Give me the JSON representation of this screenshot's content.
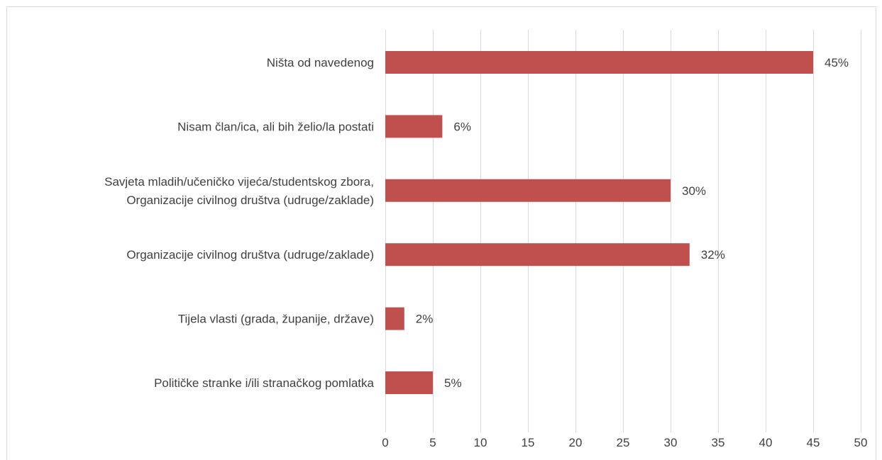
{
  "chart_data": {
    "type": "bar",
    "orientation": "horizontal",
    "title": "",
    "xlabel": "",
    "ylabel": "",
    "categories": [
      [
        "Ništa od navedenog"
      ],
      [
        "Nisam član/ica, ali bih želio/la postati"
      ],
      [
        "Savjeta mladih/učeničko vijeća/studentskog zbora,",
        "Organizacije civilnog društva (udruge/zaklade)"
      ],
      [
        "Organizacije civilnog društva (udruge/zaklade)"
      ],
      [
        "Tijela vlasti (grada, županije, države)"
      ],
      [
        "Političke stranke i/ili stranačkog pomlatka"
      ]
    ],
    "values": [
      45,
      6,
      30,
      32,
      2,
      5
    ],
    "data_labels": [
      "45%",
      "6%",
      "30%",
      "32%",
      "2%",
      "5%"
    ],
    "xlim": [
      0,
      50
    ],
    "ticks": [
      "0",
      "5",
      "10",
      "15",
      "20",
      "25",
      "30",
      "35",
      "40",
      "45",
      "50"
    ],
    "grid": true,
    "legend": "none",
    "bar_color": "#C0504D",
    "grid_color": "#D9D9D9",
    "text_color": "#404040"
  }
}
